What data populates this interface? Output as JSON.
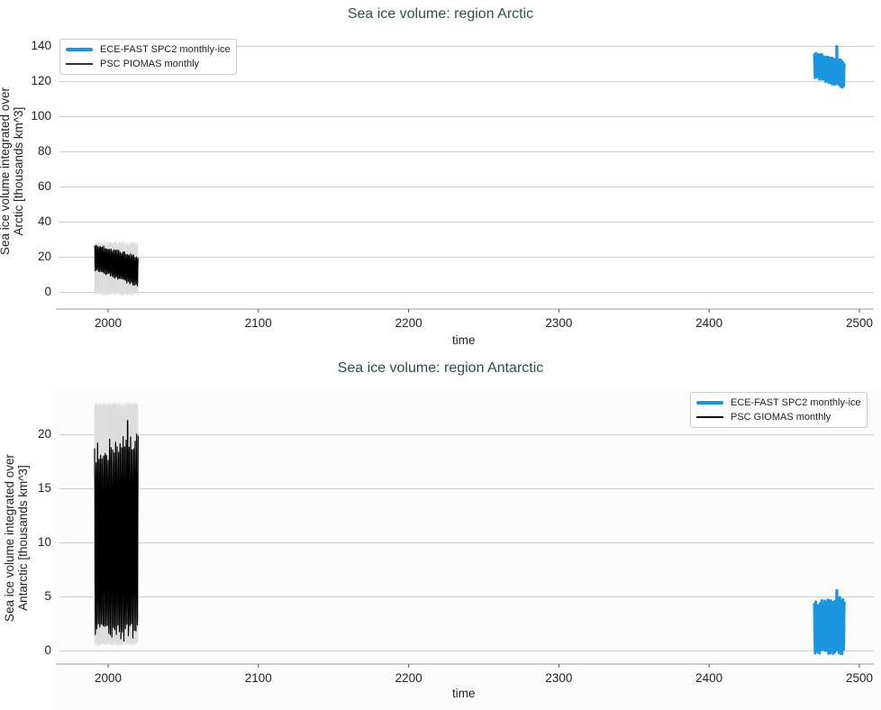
{
  "colors": {
    "model": "#1a96e0",
    "obs": "#000000",
    "obs_whisker": "#dddddd",
    "grid": "#cccccc",
    "axis": "#bbbbbb",
    "title": "#2f4f4f"
  },
  "chart_data": [
    {
      "type": "line",
      "title": "Sea ice volume: region Arctic",
      "xlabel": "time",
      "ylabel_line1": "Sea ice volume integrated over",
      "ylabel_line2": "Arctic [thousands km^3]",
      "xlim": [
        1965,
        2515
      ],
      "ylim": [
        -10,
        145
      ],
      "xticks": [
        2000,
        2100,
        2200,
        2300,
        2400,
        2500
      ],
      "yticks": [
        0,
        20,
        40,
        60,
        80,
        100,
        120,
        140
      ],
      "grid": "horizontal",
      "legend_position": "upper left",
      "series": [
        {
          "name": "ECE-FAST SPC2 monthly-ice",
          "color": "#1a96e0",
          "x_range": [
            2470,
            2490
          ],
          "monthly_min_range": [
            123,
            117
          ],
          "monthly_max_range": [
            136,
            131
          ],
          "peak_max": 140
        },
        {
          "name": "PSC PIOMAS monthly",
          "color": "#000000",
          "x_range": [
            1991,
            2020
          ],
          "monthly_min_range": [
            13,
            4
          ],
          "monthly_max_range": [
            27,
            20
          ],
          "whisker_min": -2,
          "whisker_max": 29
        }
      ]
    },
    {
      "type": "line",
      "title": "Sea ice volume: region Antarctic",
      "xlabel": "time",
      "ylabel_line1": "Sea ice volume integrated over",
      "ylabel_line2": "Antarctic [thousands km^3]",
      "xlim": [
        1965,
        2515
      ],
      "ylim": [
        -0.6,
        23.5
      ],
      "xticks": [
        2000,
        2100,
        2200,
        2300,
        2400,
        2500
      ],
      "yticks": [
        0,
        5,
        10,
        15,
        20
      ],
      "grid": "horizontal",
      "legend_position": "upper right",
      "series": [
        {
          "name": "ECE-FAST SPC2 monthly-ice",
          "color": "#1a96e0",
          "x_range": [
            2470,
            2490
          ],
          "monthly_min_range": [
            0,
            0
          ],
          "monthly_max_range": [
            4.3,
            4.8
          ],
          "peak_max": 5.6
        },
        {
          "name": "PSC GIOMAS monthly",
          "color": "#000000",
          "x_range": [
            1991,
            2020
          ],
          "monthly_min_range": [
            2.0,
            1.8
          ],
          "monthly_max_range": [
            18.2,
            19.4
          ],
          "peak_max": 21.3,
          "whisker_min": 0.5,
          "whisker_max": 23
        }
      ]
    }
  ]
}
